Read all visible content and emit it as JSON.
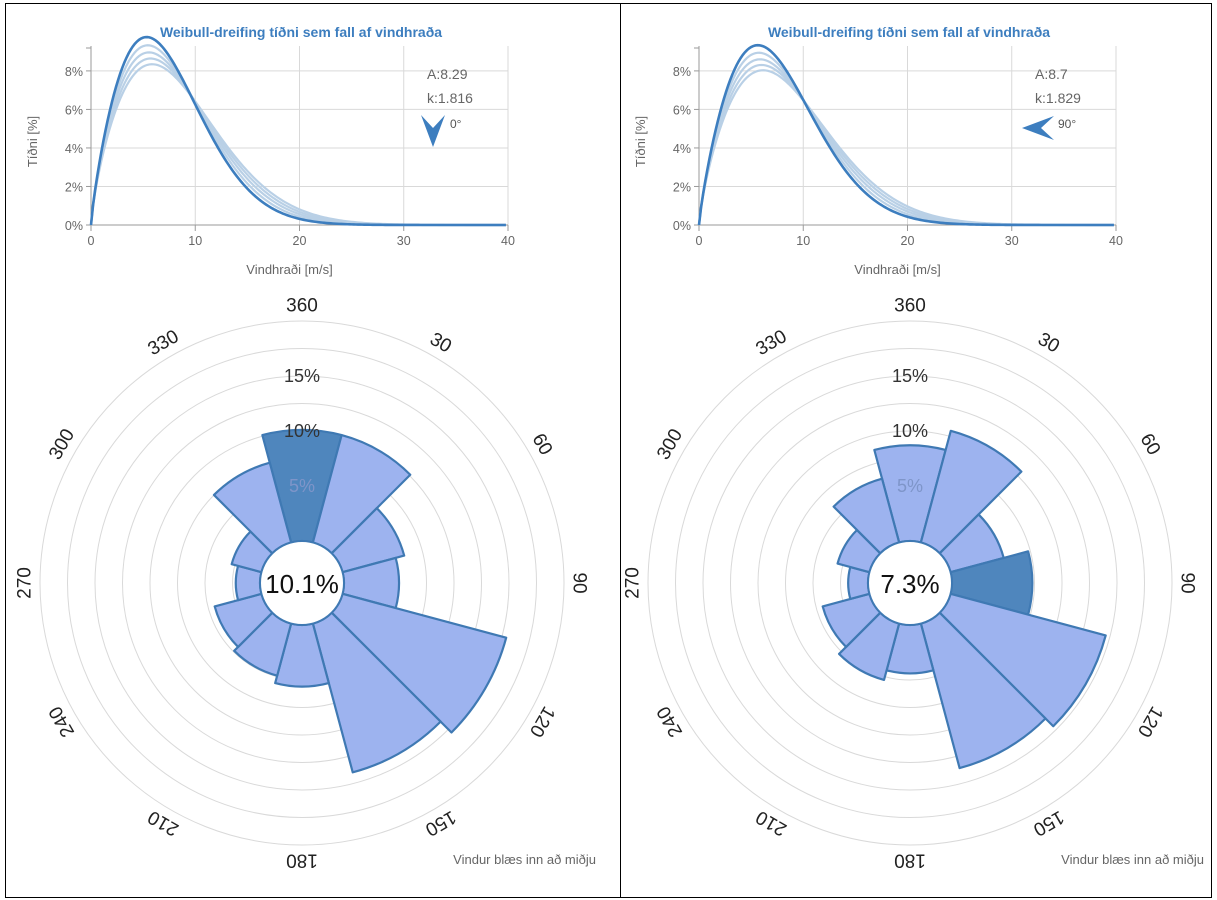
{
  "chart_data": [
    {
      "id": "left",
      "weibull": {
        "type": "line",
        "title": "Weibull-dreifing tíðni sem fall af vindhraða",
        "xlabel": "Vindhraði [m/s]",
        "ylabel": "Tíðni [%]",
        "xlim": [
          0,
          40
        ],
        "ylim": [
          0,
          9.5
        ],
        "x_ticks": [
          "0",
          "10",
          "20",
          "30",
          "40"
        ],
        "y_ticks": [
          "0%",
          "2%",
          "4%",
          "6%",
          "8%"
        ],
        "A_label": "A:8.29",
        "k_label": "k:1.816",
        "direction_label": "0°",
        "direction_deg": 0,
        "series": [
          {
            "A": 8.29,
            "k": 1.816,
            "emphasis": "primary"
          },
          {
            "A": 8.6,
            "k": 1.79,
            "emphasis": "faded"
          },
          {
            "A": 8.9,
            "k": 1.77,
            "emphasis": "faded"
          },
          {
            "A": 9.2,
            "k": 1.76,
            "emphasis": "faded"
          },
          {
            "A": 9.5,
            "k": 1.75,
            "emphasis": "faded"
          }
        ]
      },
      "rose": {
        "type": "bar",
        "angle_labels": [
          "360",
          "30",
          "60",
          "90",
          "120",
          "150",
          "180",
          "210",
          "240",
          "270",
          "300",
          "330"
        ],
        "ring_labels": [
          "5%",
          "10%",
          "15%"
        ],
        "rmax": 20,
        "center_label": "10.1%",
        "note": "Vindur blæs inn að miðju",
        "highlight_index": 0,
        "sectors": [
          {
            "direction": 0,
            "value": 10.1
          },
          {
            "direction": 30,
            "value": 10.1
          },
          {
            "direction": 60,
            "value": 5.8
          },
          {
            "direction": 90,
            "value": 5.0
          },
          {
            "direction": 120,
            "value": 15.4
          },
          {
            "direction": 150,
            "value": 14.0
          },
          {
            "direction": 180,
            "value": 5.6
          },
          {
            "direction": 210,
            "value": 4.9
          },
          {
            "direction": 240,
            "value": 4.4
          },
          {
            "direction": 270,
            "value": 2.2
          },
          {
            "direction": 300,
            "value": 2.8
          },
          {
            "direction": 330,
            "value": 7.5
          }
        ]
      }
    },
    {
      "id": "right",
      "weibull": {
        "type": "line",
        "title": "Weibull-dreifing tíðni sem fall af vindhraða",
        "xlabel": "Vindhraði [m/s]",
        "ylabel": "Tíðni [%]",
        "xlim": [
          0,
          40
        ],
        "ylim": [
          0,
          9.5
        ],
        "x_ticks": [
          "0",
          "10",
          "20",
          "30",
          "40"
        ],
        "y_ticks": [
          "0%",
          "2%",
          "4%",
          "6%",
          "8%"
        ],
        "A_label": "A:8.7",
        "k_label": "k:1.829",
        "direction_label": "90°",
        "direction_deg": 90,
        "series": [
          {
            "A": 8.7,
            "k": 1.829,
            "emphasis": "primary"
          },
          {
            "A": 9.0,
            "k": 1.8,
            "emphasis": "faded"
          },
          {
            "A": 9.3,
            "k": 1.78,
            "emphasis": "faded"
          },
          {
            "A": 9.6,
            "k": 1.77,
            "emphasis": "faded"
          },
          {
            "A": 9.9,
            "k": 1.76,
            "emphasis": "faded"
          }
        ]
      },
      "rose": {
        "type": "bar",
        "angle_labels": [
          "360",
          "30",
          "60",
          "90",
          "120",
          "150",
          "180",
          "210",
          "240",
          "270",
          "300",
          "330"
        ],
        "ring_labels": [
          "5%",
          "10%",
          "15%"
        ],
        "rmax": 20,
        "center_label": "7.3%",
        "note": "Vindur blæs inn að miðju",
        "highlight_index": 3,
        "sectors": [
          {
            "direction": 0,
            "value": 8.7
          },
          {
            "direction": 30,
            "value": 10.5
          },
          {
            "direction": 60,
            "value": 5.0
          },
          {
            "direction": 90,
            "value": 7.3
          },
          {
            "direction": 120,
            "value": 14.6
          },
          {
            "direction": 150,
            "value": 13.6
          },
          {
            "direction": 180,
            "value": 4.4
          },
          {
            "direction": 210,
            "value": 5.3
          },
          {
            "direction": 240,
            "value": 4.4
          },
          {
            "direction": 270,
            "value": 1.8
          },
          {
            "direction": 300,
            "value": 3.0
          },
          {
            "direction": 330,
            "value": 6.0
          }
        ]
      }
    }
  ],
  "colors": {
    "primary_line": "#3d7ebf",
    "faded_line": "#b9d0e6",
    "sector_fill": "#9db3ef",
    "sector_stroke": "#3f79b3",
    "sector_highlight": "#4f86bd",
    "grid": "#d9d9d9",
    "arrow": "#3d7ebf"
  }
}
